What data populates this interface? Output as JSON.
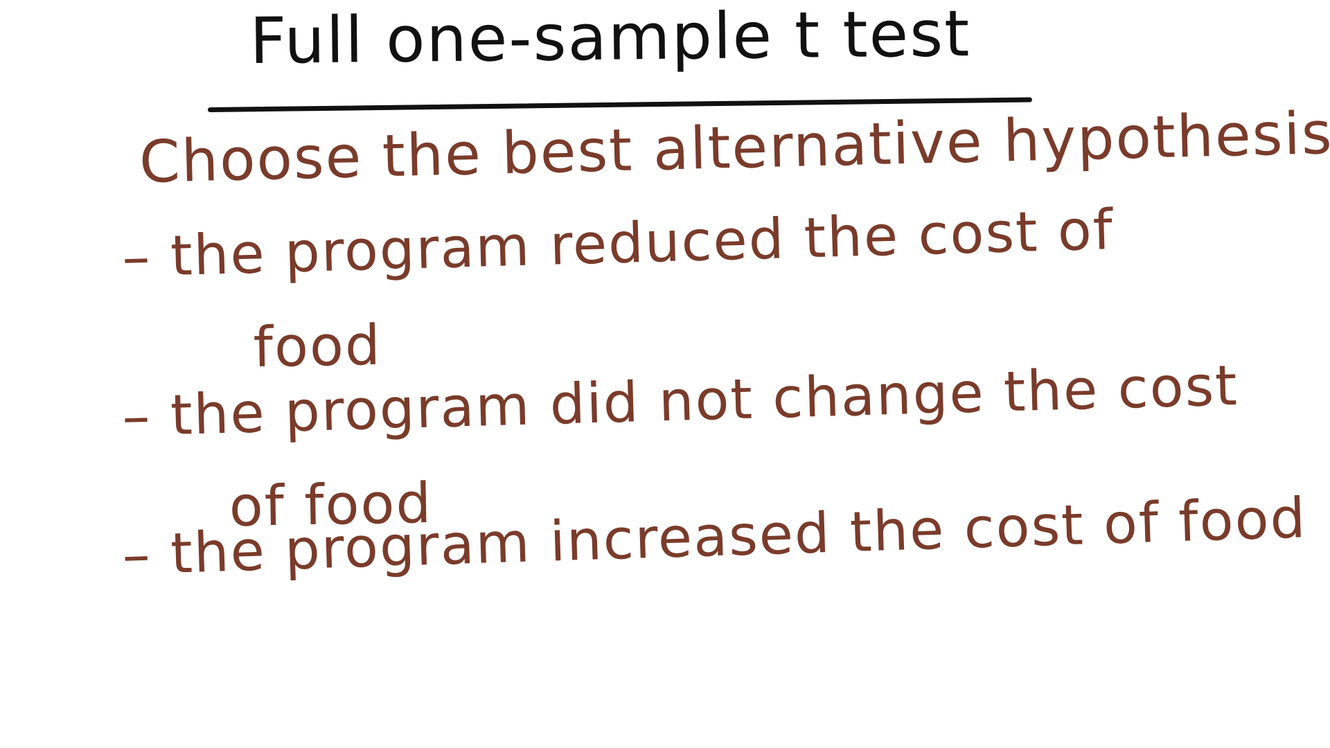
{
  "colors": {
    "title_ink": "#111111",
    "body_ink": "#7a3b2a",
    "background": "#ffffff"
  },
  "slide": {
    "title": "Full one-sample t test",
    "prompt": "Choose the best alternative hypothesis",
    "options": [
      {
        "bullet": "–",
        "line1": "the program reduced the cost of",
        "line2": "food"
      },
      {
        "bullet": "–",
        "line1": "the program did not change the cost",
        "line2": "of food"
      },
      {
        "bullet": "–",
        "line1": "the program increased the cost of food",
        "line2": ""
      }
    ]
  }
}
